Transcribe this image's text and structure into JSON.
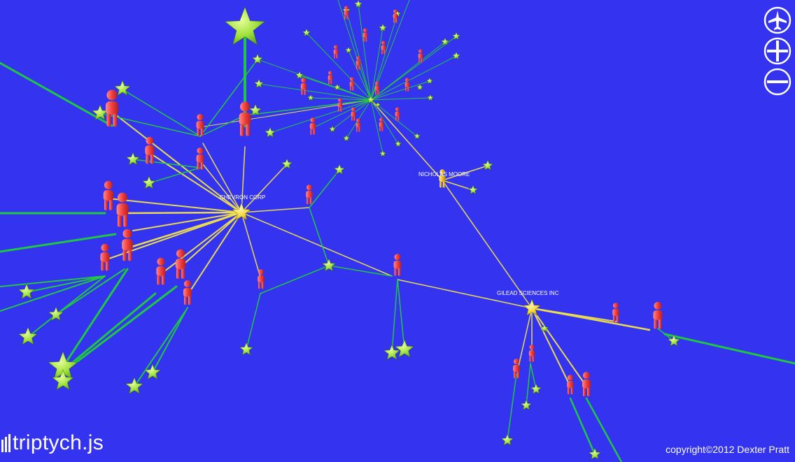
{
  "brand": {
    "name": "triptych.js"
  },
  "footer": {
    "copyright": "copyright©2012 Dexter Pratt"
  },
  "controls": [
    {
      "name": "navigate-button",
      "icon": "airplane-icon"
    },
    {
      "name": "zoom-in-button",
      "icon": "zoom-in-icon"
    },
    {
      "name": "zoom-out-button",
      "icon": "zoom-out-icon"
    }
  ],
  "labels": {
    "chevron": "CHEVRON CORP",
    "gilead": "GILEAD SCIENCES INC",
    "moore": "NICHOLAS MOORE"
  },
  "colors": {
    "background": "#3333f0",
    "edge_green": "#1fcf3a",
    "edge_yellow": "#f2e24a",
    "person": "#f04a4a",
    "person_highlight": "#f0c020",
    "star": "#a6e83c",
    "company_star": "#f7d63c"
  }
}
